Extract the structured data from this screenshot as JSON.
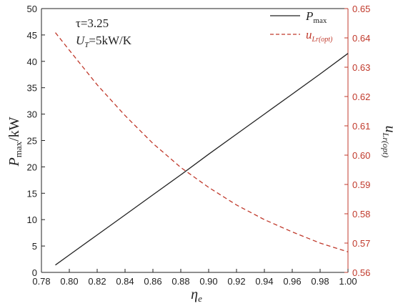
{
  "chart_data": {
    "type": "line",
    "x": [
      0.79,
      0.8,
      0.82,
      0.84,
      0.86,
      0.88,
      0.9,
      0.92,
      0.94,
      0.96,
      0.98,
      1.0
    ],
    "xlim": [
      0.78,
      1.0
    ],
    "x_ticks": [
      "0.78",
      "0.80",
      "0.82",
      "0.84",
      "0.86",
      "0.88",
      "0.90",
      "0.92",
      "0.94",
      "0.96",
      "0.98",
      "1.00"
    ],
    "xlabel": {
      "main": "η",
      "sub": "e"
    },
    "left_axis": {
      "ylim": [
        0,
        50
      ],
      "ticks": [
        "0",
        "5",
        "10",
        "15",
        "20",
        "25",
        "30",
        "35",
        "40",
        "45",
        "50"
      ],
      "label": {
        "main": "P",
        "sub": "max",
        "suffix": "/kW"
      },
      "color": "#222222"
    },
    "right_axis": {
      "ylim": [
        0.56,
        0.65
      ],
      "ticks": [
        "0.56",
        "0.57",
        "0.58",
        "0.59",
        "0.60",
        "0.61",
        "0.62",
        "0.63",
        "0.64",
        "0.65"
      ],
      "label": {
        "main": "u",
        "sub": "Lr(opt)"
      },
      "color": "#c0392b"
    },
    "series": [
      {
        "name": "P_max",
        "axis": "left",
        "style": "solid",
        "color": "#222222",
        "values": [
          1.4,
          3.3,
          7.1,
          10.9,
          14.7,
          18.5,
          22.4,
          26.2,
          30.0,
          33.8,
          37.6,
          41.5
        ]
      },
      {
        "name": "u_Lr(opt)",
        "axis": "right",
        "style": "dashed",
        "color": "#c0392b",
        "values": [
          0.6418,
          0.6358,
          0.624,
          0.6135,
          0.604,
          0.5958,
          0.589,
          0.583,
          0.578,
          0.5738,
          0.57,
          0.567
        ]
      }
    ],
    "legend": {
      "position": "top-right",
      "entries": [
        {
          "main": "P",
          "sub": "max"
        },
        {
          "main": "u",
          "sub": "Lr(opt)"
        }
      ]
    },
    "annotations": [
      {
        "text": "τ=3.25"
      },
      {
        "main": "U",
        "sub": "T",
        "rest": "=5kW/K"
      }
    ],
    "grid": false
  }
}
